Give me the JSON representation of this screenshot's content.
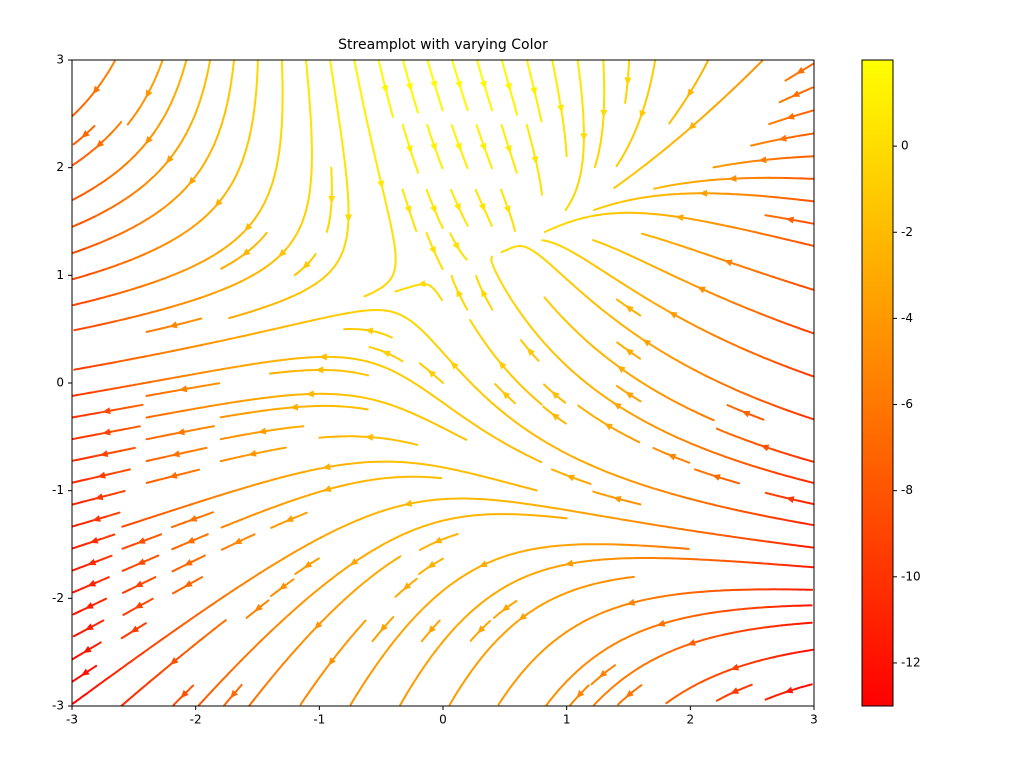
{
  "chart_data": {
    "type": "streamplot",
    "title": "Streamplot with varying Color",
    "xlim": [
      -3,
      3
    ],
    "ylim": [
      -3,
      3
    ],
    "xticks": [
      -3,
      -2,
      -1,
      0,
      1,
      2,
      3
    ],
    "yticks": [
      -3,
      -2,
      -1,
      0,
      1,
      2,
      3
    ],
    "colormap": [
      "#ff0000",
      "#ffff00"
    ],
    "clim": [
      -13,
      2
    ],
    "colorbar_ticks": [
      0,
      -2,
      -4,
      -6,
      -8,
      -10,
      -12
    ]
  }
}
